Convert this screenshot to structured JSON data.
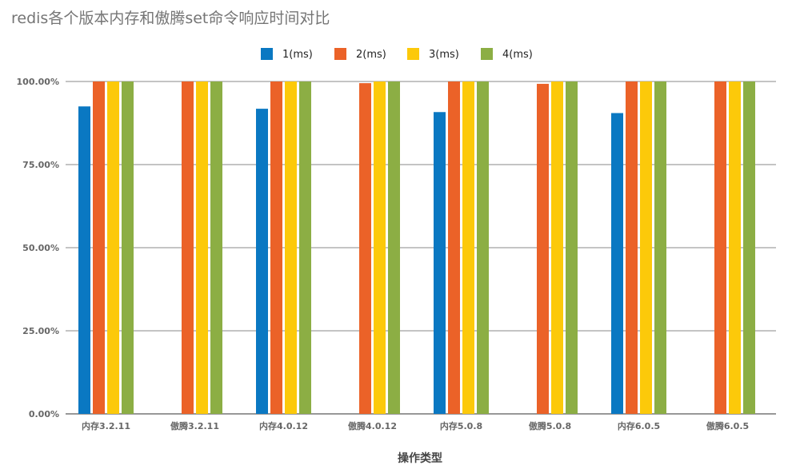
{
  "chart_data": {
    "type": "bar",
    "title": "redis各个版本内存和傲腾set命令响应时间对比",
    "xlabel": "操作类型",
    "ylabel": "",
    "ylim": [
      0,
      1
    ],
    "yticks": [
      "0.00%",
      "25.00%",
      "50.00%",
      "75.00%",
      "100.00%"
    ],
    "categories": [
      "内存3.2.11",
      "傲腾3.2.11",
      "内存4.0.12",
      "傲腾4.0.12",
      "内存5.0.8",
      "傲腾5.0.8",
      "内存6.0.5",
      "傲腾6.0.5"
    ],
    "series": [
      {
        "name": "1(ms)",
        "color": "#0a78c2",
        "values": [
          0.925,
          0,
          0.918,
          0,
          0.908,
          0,
          0.905,
          0
        ]
      },
      {
        "name": "2(ms)",
        "color": "#eb6228",
        "values": [
          1.0,
          1.0,
          1.0,
          0.995,
          1.0,
          0.993,
          1.0,
          1.0
        ]
      },
      {
        "name": "3(ms)",
        "color": "#fcc90a",
        "values": [
          1.0,
          1.0,
          1.0,
          1.0,
          1.0,
          1.0,
          1.0,
          1.0
        ]
      },
      {
        "name": "4(ms)",
        "color": "#8cae44",
        "values": [
          1.0,
          1.0,
          1.0,
          1.0,
          1.0,
          1.0,
          1.0,
          1.0
        ]
      }
    ],
    "legend_position": "top-center",
    "grid": true
  }
}
